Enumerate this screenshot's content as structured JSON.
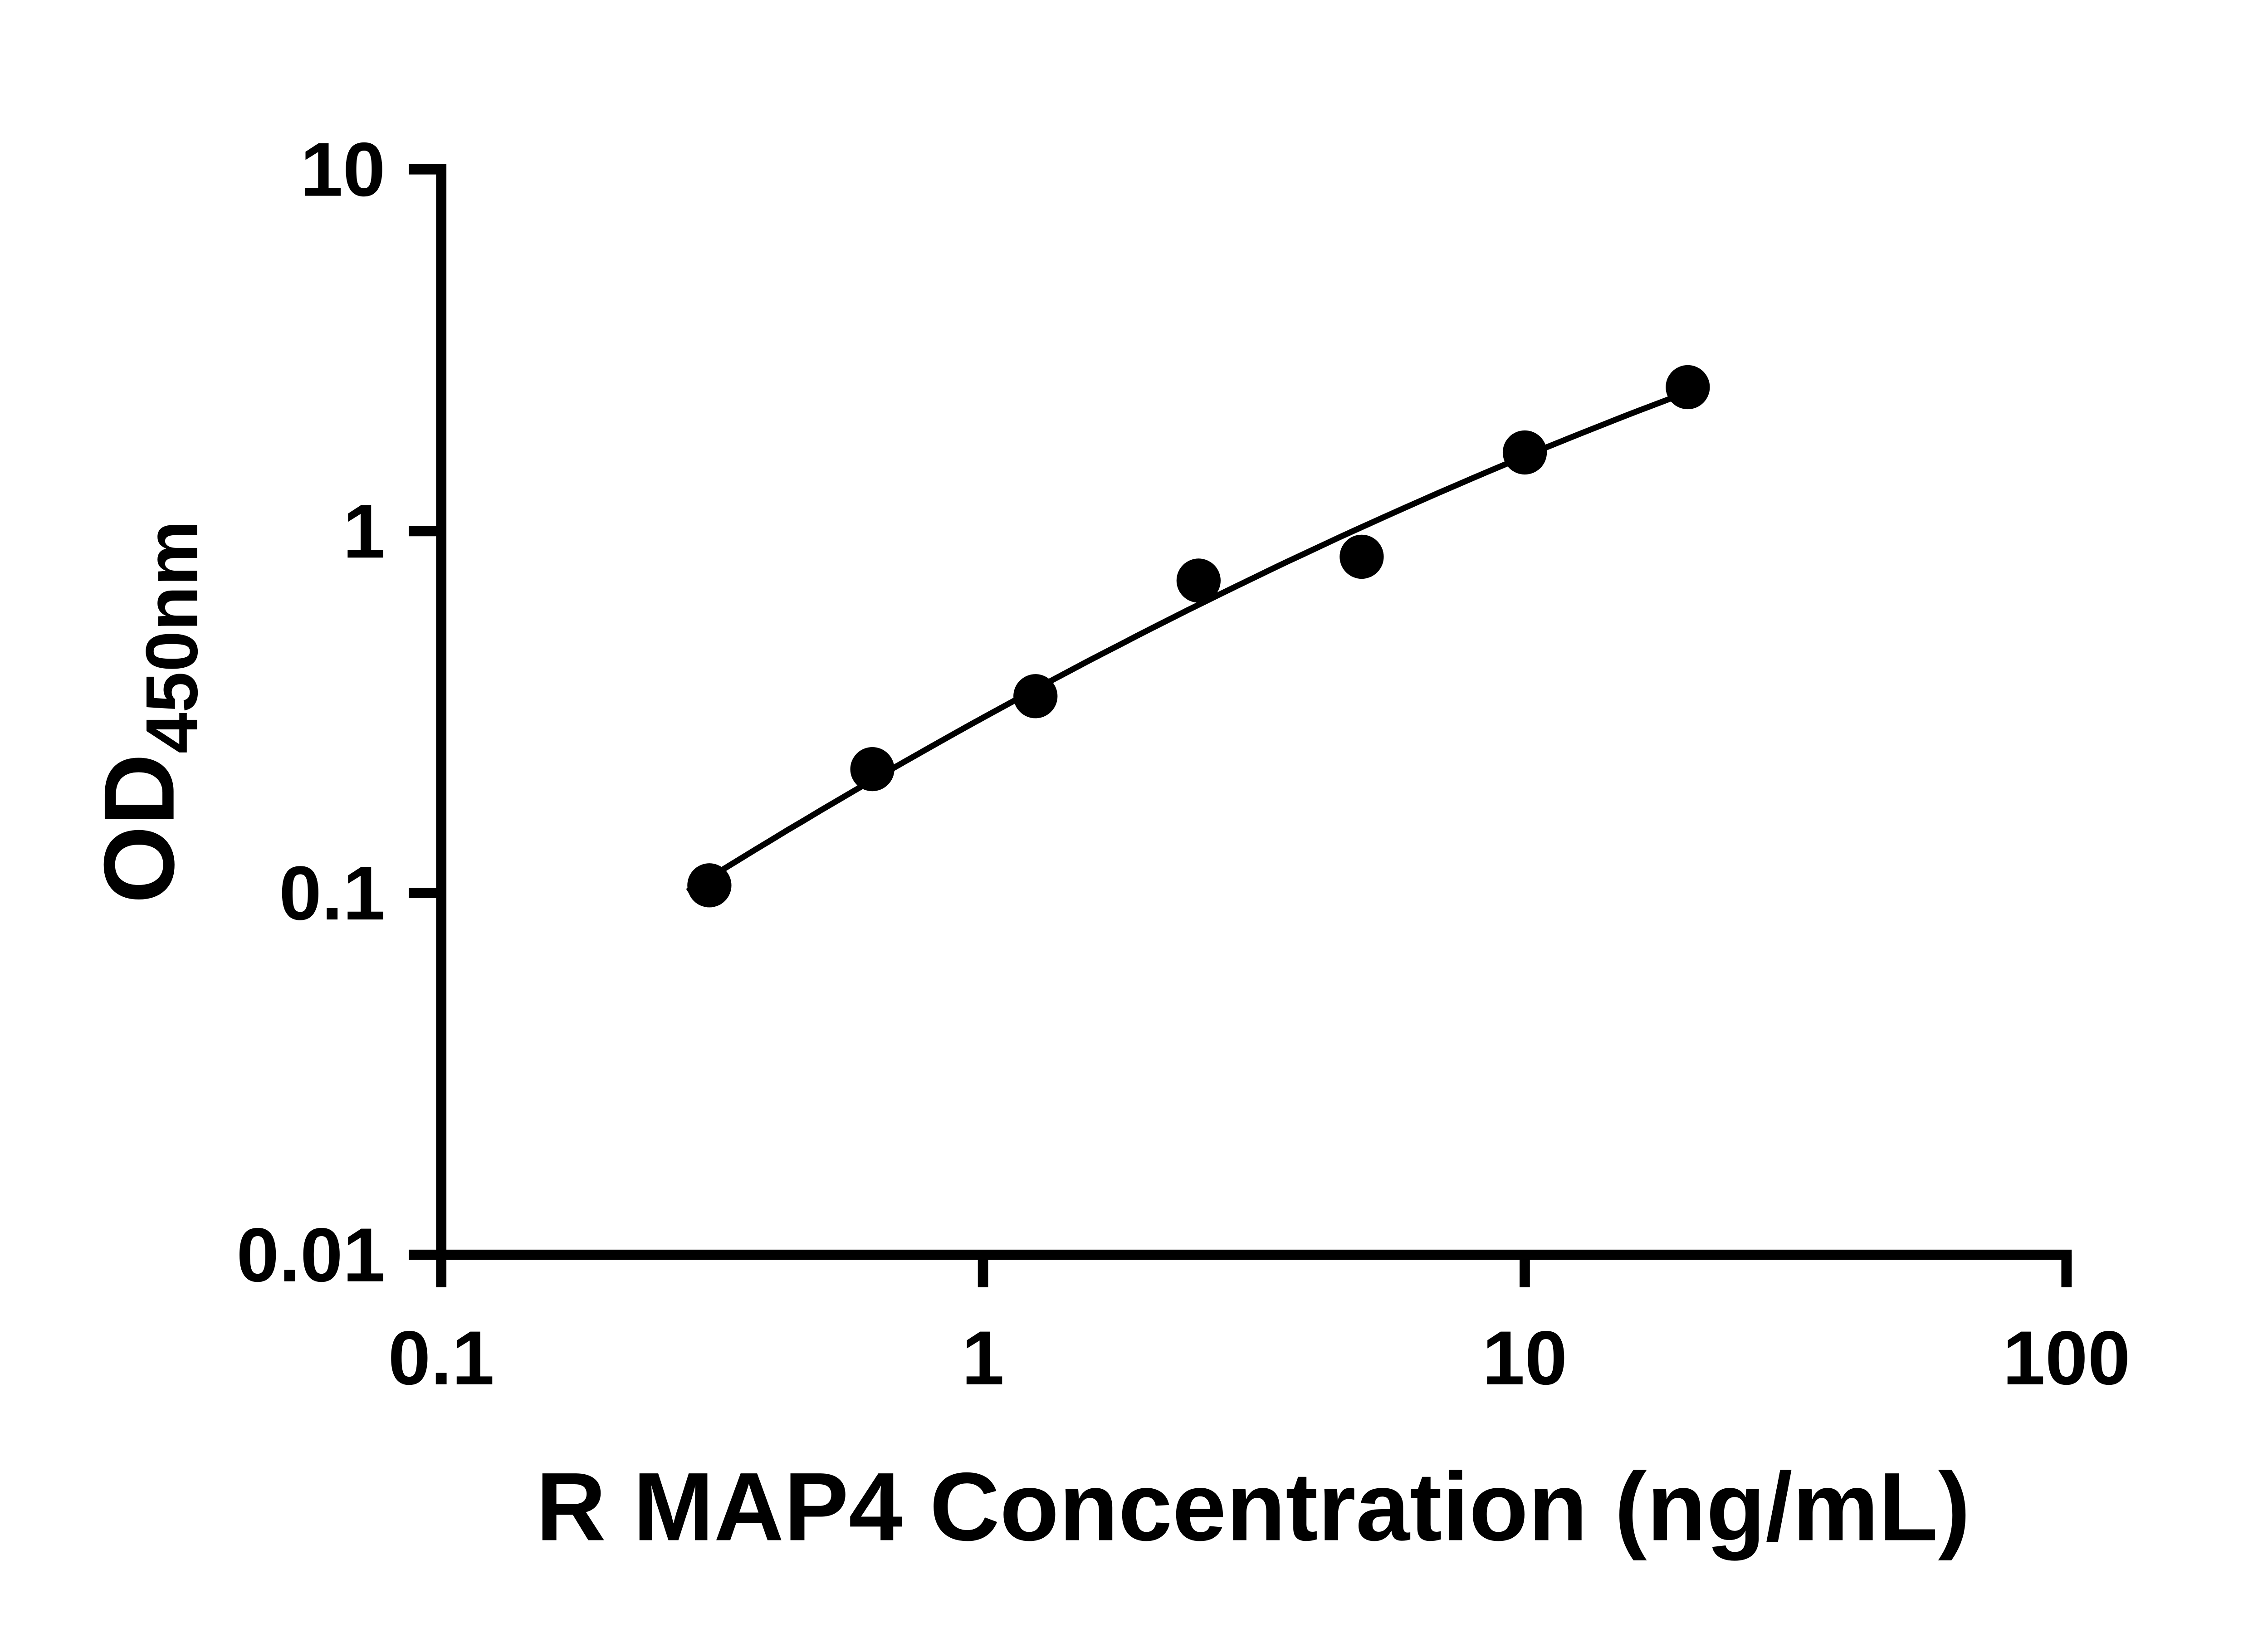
{
  "chart_data": {
    "type": "scatter",
    "title": "",
    "xlabel": "R MAP4 Concentration (ng/mL)",
    "ylabel": "OD450nm",
    "ylabel_prefix": "OD",
    "ylabel_subscript": "450nm",
    "x_scale": "log10",
    "y_scale": "log10",
    "xlim": [
      0.1,
      100
    ],
    "ylim": [
      0.01,
      10
    ],
    "grid": false,
    "legend": false,
    "background": "#ffffff",
    "axis_color": "#000000",
    "x_ticks": [
      {
        "v": 0.1,
        "label": "0.1"
      },
      {
        "v": 1,
        "label": "1"
      },
      {
        "v": 10,
        "label": "10"
      },
      {
        "v": 100,
        "label": "100"
      }
    ],
    "y_ticks": [
      {
        "v": 0.01,
        "label": "0.01"
      },
      {
        "v": 0.1,
        "label": "0.1"
      },
      {
        "v": 1,
        "label": "1"
      },
      {
        "v": 10,
        "label": "10"
      }
    ],
    "series": [
      {
        "marker": "circle",
        "marker_color": "#000000",
        "line_color": "#000000",
        "trend_line": "power-fit",
        "points": [
          {
            "x": 0.3125,
            "y": 0.105
          },
          {
            "x": 0.625,
            "y": 0.22
          },
          {
            "x": 1.25,
            "y": 0.35
          },
          {
            "x": 2.5,
            "y": 0.73
          },
          {
            "x": 5,
            "y": 0.85
          },
          {
            "x": 10,
            "y": 1.65
          },
          {
            "x": 20,
            "y": 2.5
          }
        ]
      }
    ]
  }
}
